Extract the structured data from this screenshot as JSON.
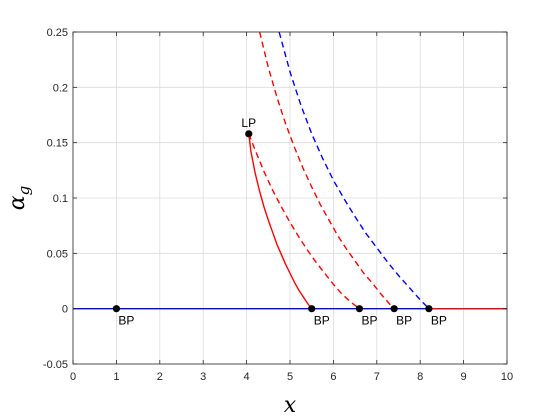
{
  "chart_data": {
    "type": "line",
    "xlabel": "x",
    "ylabel": "α",
    "ylabel_subscript": "g",
    "xlim": [
      0,
      10
    ],
    "ylim": [
      -0.05,
      0.25
    ],
    "xticks": [
      "0",
      "1",
      "2",
      "3",
      "4",
      "5",
      "6",
      "7",
      "8",
      "9",
      "10"
    ],
    "yticks": [
      "-0.05",
      "0",
      "0.05",
      "0.1",
      "0.15",
      "0.2",
      "0.25"
    ],
    "grid": true,
    "series": [
      {
        "color": "#0000ff",
        "style": "solid",
        "x": [
          0,
          10
        ],
        "y": [
          0,
          0
        ]
      },
      {
        "color": "#ff0000",
        "style": "solid",
        "x": [
          8.2,
          10
        ],
        "y": [
          0,
          0
        ]
      },
      {
        "color": "#ff0000",
        "style": "solid",
        "x": [
          4.05,
          4.1,
          4.2,
          4.3,
          4.4,
          4.5,
          4.6,
          4.7,
          4.8,
          4.9,
          5.0,
          5.1,
          5.2,
          5.3,
          5.4,
          5.5
        ],
        "y": [
          0.158,
          0.142,
          0.122,
          0.106,
          0.092,
          0.08,
          0.069,
          0.058,
          0.049,
          0.04,
          0.032,
          0.024,
          0.017,
          0.011,
          0.005,
          0.0
        ]
      },
      {
        "color": "#ff0000",
        "style": "dashed",
        "x": [
          4.05,
          4.2,
          4.4,
          4.6,
          4.8,
          5.0,
          5.2,
          5.4,
          5.6,
          5.8,
          6.0,
          6.2,
          6.4,
          6.6
        ],
        "y": [
          0.158,
          0.143,
          0.124,
          0.107,
          0.092,
          0.078,
          0.065,
          0.053,
          0.042,
          0.032,
          0.022,
          0.013,
          0.006,
          0.0
        ]
      },
      {
        "color": "#ff0000",
        "style": "dashed",
        "x": [
          4.3,
          4.5,
          4.7,
          4.9,
          5.1,
          5.3,
          5.5,
          5.7,
          5.9,
          6.1,
          6.3,
          6.5,
          6.7,
          6.9,
          7.1,
          7.3,
          7.4
        ],
        "y": [
          0.25,
          0.218,
          0.191,
          0.167,
          0.146,
          0.127,
          0.11,
          0.094,
          0.08,
          0.066,
          0.054,
          0.043,
          0.032,
          0.023,
          0.013,
          0.004,
          0.0
        ]
      },
      {
        "color": "#0000ff",
        "style": "dashed",
        "x": [
          4.75,
          5.0,
          5.25,
          5.5,
          5.75,
          6.0,
          6.25,
          6.5,
          6.75,
          7.0,
          7.25,
          7.5,
          7.75,
          8.0,
          8.2
        ],
        "y": [
          0.25,
          0.214,
          0.184,
          0.158,
          0.136,
          0.116,
          0.099,
          0.083,
          0.068,
          0.055,
          0.042,
          0.03,
          0.019,
          0.008,
          0.0
        ]
      }
    ],
    "points": [
      {
        "label": "LP",
        "x": 4.05,
        "y": 0.158,
        "label_pos": "above"
      },
      {
        "label": "BP",
        "x": 1.0,
        "y": 0.0,
        "label_pos": "below"
      },
      {
        "label": "BP",
        "x": 5.5,
        "y": 0.0,
        "label_pos": "below"
      },
      {
        "label": "BP",
        "x": 6.6,
        "y": 0.0,
        "label_pos": "below"
      },
      {
        "label": "BP",
        "x": 7.4,
        "y": 0.0,
        "label_pos": "below"
      },
      {
        "label": "BP",
        "x": 8.2,
        "y": 0.0,
        "label_pos": "below"
      }
    ]
  }
}
